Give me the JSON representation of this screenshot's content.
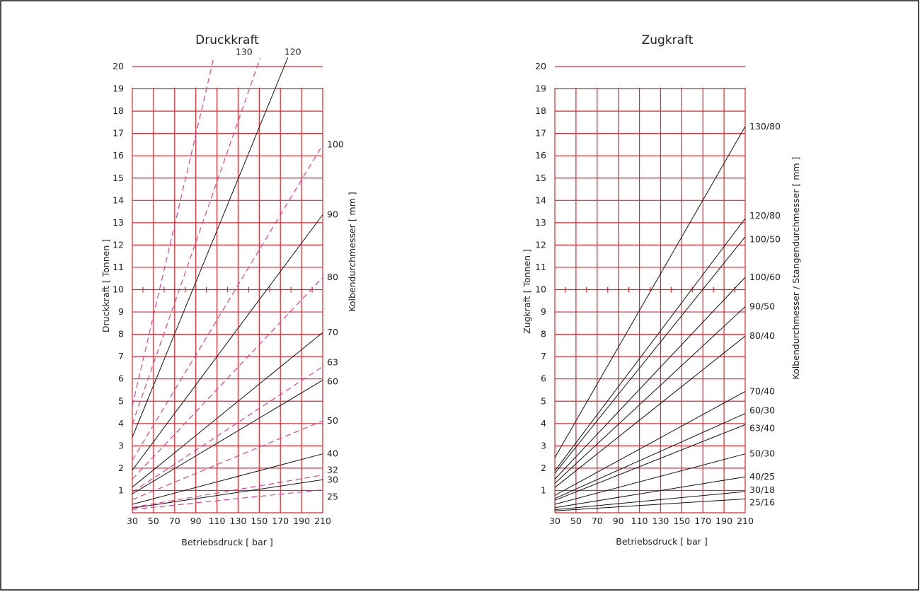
{
  "chart_data": [
    {
      "type": "line",
      "title": "Druckkraft",
      "xlabel": "Betriebsdruck [ bar ]",
      "ylabel": "Druckkraft [ Tonnen ]",
      "y2label": "Kolbendurchmesser [ mm ]",
      "x_ticks": [
        "30",
        "50",
        "70",
        "90",
        "110",
        "130",
        "150",
        "170",
        "190",
        "210"
      ],
      "y_ticks": [
        "1",
        "2",
        "3",
        "4",
        "5",
        "6",
        "7",
        "8",
        "9",
        "10",
        "11",
        "12",
        "13",
        "14",
        "15",
        "16",
        "17",
        "18",
        "19",
        "20"
      ],
      "xlim": [
        30,
        210
      ],
      "ylim": [
        0,
        20
      ],
      "grid": true,
      "series": [
        {
          "name": "25",
          "style": "dashed",
          "x": [
            30,
            210
          ],
          "y": [
            0.15,
            1.03
          ]
        },
        {
          "name": "30",
          "style": "solid",
          "x": [
            30,
            210
          ],
          "y": [
            0.21,
            1.48
          ]
        },
        {
          "name": "32",
          "style": "dashed",
          "x": [
            30,
            210
          ],
          "y": [
            0.24,
            1.69
          ]
        },
        {
          "name": "40",
          "style": "solid",
          "x": [
            30,
            210
          ],
          "y": [
            0.38,
            2.64
          ]
        },
        {
          "name": "50",
          "style": "dashed",
          "x": [
            30,
            210
          ],
          "y": [
            0.59,
            4.12
          ]
        },
        {
          "name": "60",
          "style": "solid",
          "x": [
            30,
            210
          ],
          "y": [
            0.85,
            5.94
          ]
        },
        {
          "name": "63",
          "style": "dashed",
          "x": [
            30,
            210
          ],
          "y": [
            0.93,
            6.55
          ]
        },
        {
          "name": "70",
          "style": "solid",
          "x": [
            30,
            210
          ],
          "y": [
            1.15,
            8.08
          ]
        },
        {
          "name": "80",
          "style": "dashed",
          "x": [
            30,
            210
          ],
          "y": [
            1.51,
            10.55
          ]
        },
        {
          "name": "90",
          "style": "solid",
          "x": [
            30,
            210
          ],
          "y": [
            1.91,
            13.36
          ]
        },
        {
          "name": "100",
          "style": "dashed",
          "x": [
            30,
            210
          ],
          "y": [
            2.36,
            16.49
          ]
        },
        {
          "name": "120",
          "style": "solid",
          "x": [
            30,
            177
          ],
          "y": [
            3.39,
            20.4
          ]
        },
        {
          "name": "130",
          "style": "dashed",
          "x": [
            30,
            151
          ],
          "y": [
            3.98,
            20.4
          ]
        },
        {
          "name": "",
          "style": "dashed",
          "x": [
            30,
            107
          ],
          "y": [
            4.8,
            20.4
          ]
        }
      ]
    },
    {
      "type": "line",
      "title": "Zugkraft",
      "xlabel": "Betriebsdruck [ bar ]",
      "ylabel": "Zugkraft [ Tonnen ]",
      "y2label": "Kolbendurchmesser / Stangendurchmesser [ mm ]",
      "x_ticks": [
        "30",
        "50",
        "70",
        "90",
        "110",
        "130",
        "150",
        "170",
        "190",
        "210"
      ],
      "y_ticks": [
        "1",
        "2",
        "3",
        "4",
        "5",
        "6",
        "7",
        "8",
        "9",
        "10",
        "11",
        "12",
        "13",
        "14",
        "15",
        "16",
        "17",
        "18",
        "19",
        "20"
      ],
      "xlim": [
        30,
        210
      ],
      "ylim": [
        0,
        20
      ],
      "grid": true,
      "series": [
        {
          "name": "25/16",
          "x": [
            30,
            210
          ],
          "y": [
            0.09,
            0.62
          ]
        },
        {
          "name": "30/18",
          "x": [
            30,
            210
          ],
          "y": [
            0.14,
            0.95
          ]
        },
        {
          "name": "40/25",
          "x": [
            30,
            210
          ],
          "y": [
            0.23,
            1.61
          ]
        },
        {
          "name": "50/30",
          "x": [
            30,
            210
          ],
          "y": [
            0.38,
            2.64
          ]
        },
        {
          "name": "63/40",
          "x": [
            30,
            210
          ],
          "y": [
            0.56,
            3.95
          ]
        },
        {
          "name": "60/30",
          "x": [
            30,
            210
          ],
          "y": [
            0.64,
            4.45
          ]
        },
        {
          "name": "70/40",
          "x": [
            30,
            210
          ],
          "y": [
            0.78,
            5.44
          ]
        },
        {
          "name": "80/40",
          "x": [
            30,
            210
          ],
          "y": [
            1.13,
            7.92
          ]
        },
        {
          "name": "90/50",
          "x": [
            30,
            210
          ],
          "y": [
            1.32,
            9.24
          ]
        },
        {
          "name": "100/60",
          "x": [
            30,
            210
          ],
          "y": [
            1.51,
            10.55
          ]
        },
        {
          "name": "100/50",
          "x": [
            30,
            210
          ],
          "y": [
            1.77,
            12.37
          ]
        },
        {
          "name": "120/80",
          "x": [
            30,
            210
          ],
          "y": [
            1.88,
            13.19
          ]
        },
        {
          "name": "130/80",
          "x": [
            30,
            210
          ],
          "y": [
            2.47,
            17.31
          ]
        }
      ]
    }
  ]
}
